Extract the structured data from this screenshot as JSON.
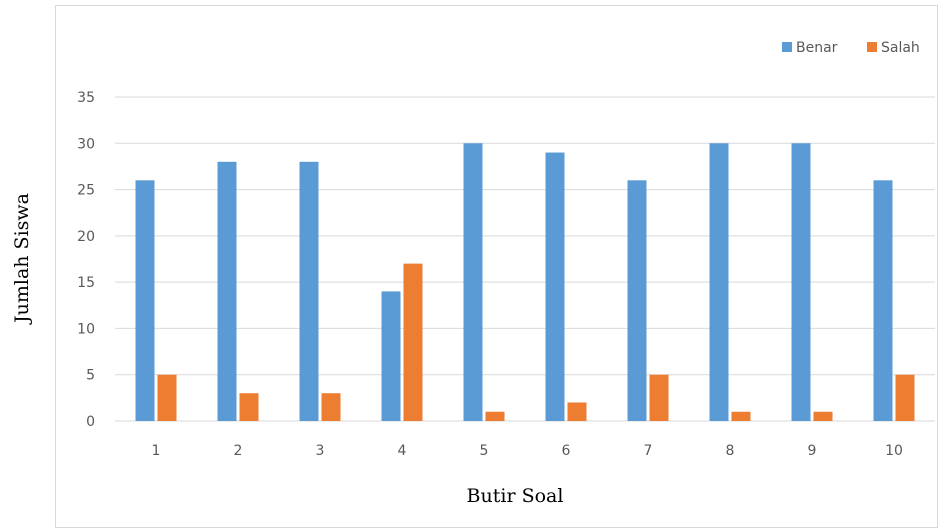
{
  "chart_data": {
    "type": "bar",
    "title": "",
    "xlabel": "Butir Soal",
    "ylabel": "Jumlah Siswa",
    "categories": [
      "1",
      "2",
      "3",
      "4",
      "5",
      "6",
      "7",
      "8",
      "9",
      "10"
    ],
    "series": [
      {
        "name": "Benar",
        "color": "#5B9BD5",
        "values": [
          26,
          28,
          28,
          14,
          30,
          29,
          26,
          30,
          30,
          26
        ]
      },
      {
        "name": "Salah",
        "color": "#ED7D31",
        "values": [
          5,
          3,
          3,
          17,
          1,
          2,
          5,
          1,
          1,
          5
        ]
      }
    ],
    "ylim": [
      0,
      35
    ],
    "yticks": [
      0,
      5,
      10,
      15,
      20,
      25,
      30,
      35
    ],
    "grid": true,
    "gridColor": "#D9D9D9",
    "legend": "top-right"
  }
}
